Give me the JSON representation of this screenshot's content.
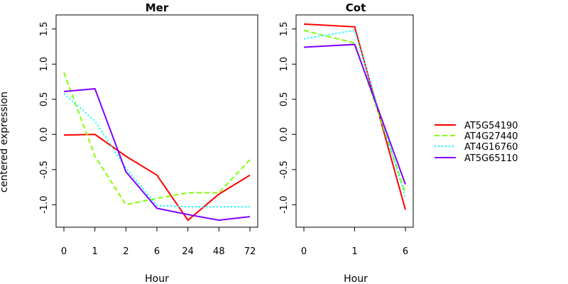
{
  "chart_data": {
    "type": "line",
    "ylabel": "centered expression",
    "legend_placement": "right",
    "series_names": [
      "AT5G54190",
      "AT4G27440",
      "AT4G16760",
      "AT5G65110"
    ],
    "series_colors": [
      "#ff0000",
      "#7fff00",
      "#00ffff",
      "#8000ff"
    ],
    "series_dash": [
      "solid",
      "dashed",
      "dotted",
      "solid"
    ],
    "panels": [
      {
        "title": "Mer",
        "xlabel": "Hour",
        "categories": [
          "0",
          "1",
          "2",
          "6",
          "24",
          "48",
          "72"
        ],
        "ylim": [
          -1.32,
          1.7
        ],
        "yticks": [
          "-1.0",
          "-0.5",
          "0.0",
          "0.5",
          "1.0",
          "1.5"
        ],
        "series": [
          {
            "name": "AT5G54190",
            "values": [
              -0.01,
              0.0,
              -0.31,
              -0.58,
              -1.22,
              -0.85,
              -0.58
            ]
          },
          {
            "name": "AT4G27440",
            "values": [
              0.88,
              -0.31,
              -1.0,
              -0.91,
              -0.83,
              -0.83,
              -0.36
            ]
          },
          {
            "name": "AT4G16760",
            "values": [
              0.58,
              0.19,
              -0.48,
              -1.01,
              -1.03,
              -1.03,
              -1.03
            ]
          },
          {
            "name": "AT5G65110",
            "values": [
              0.61,
              0.65,
              -0.53,
              -1.05,
              -1.14,
              -1.22,
              -1.17
            ]
          }
        ]
      },
      {
        "title": "Cot",
        "xlabel": "Hour",
        "categories": [
          "0",
          "1",
          "6"
        ],
        "ylim": [
          -1.32,
          1.7
        ],
        "yticks": [
          "-1.0",
          "-0.5",
          "0.0",
          "0.5",
          "1.0",
          "1.5"
        ],
        "series": [
          {
            "name": "AT5G54190",
            "values": [
              1.57,
              1.53,
              -1.07
            ]
          },
          {
            "name": "AT4G27440",
            "values": [
              1.48,
              1.3,
              -0.83
            ]
          },
          {
            "name": "AT4G16760",
            "values": [
              1.36,
              1.48,
              -0.9
            ]
          },
          {
            "name": "AT5G65110",
            "values": [
              1.24,
              1.28,
              -0.71
            ]
          }
        ]
      }
    ]
  }
}
